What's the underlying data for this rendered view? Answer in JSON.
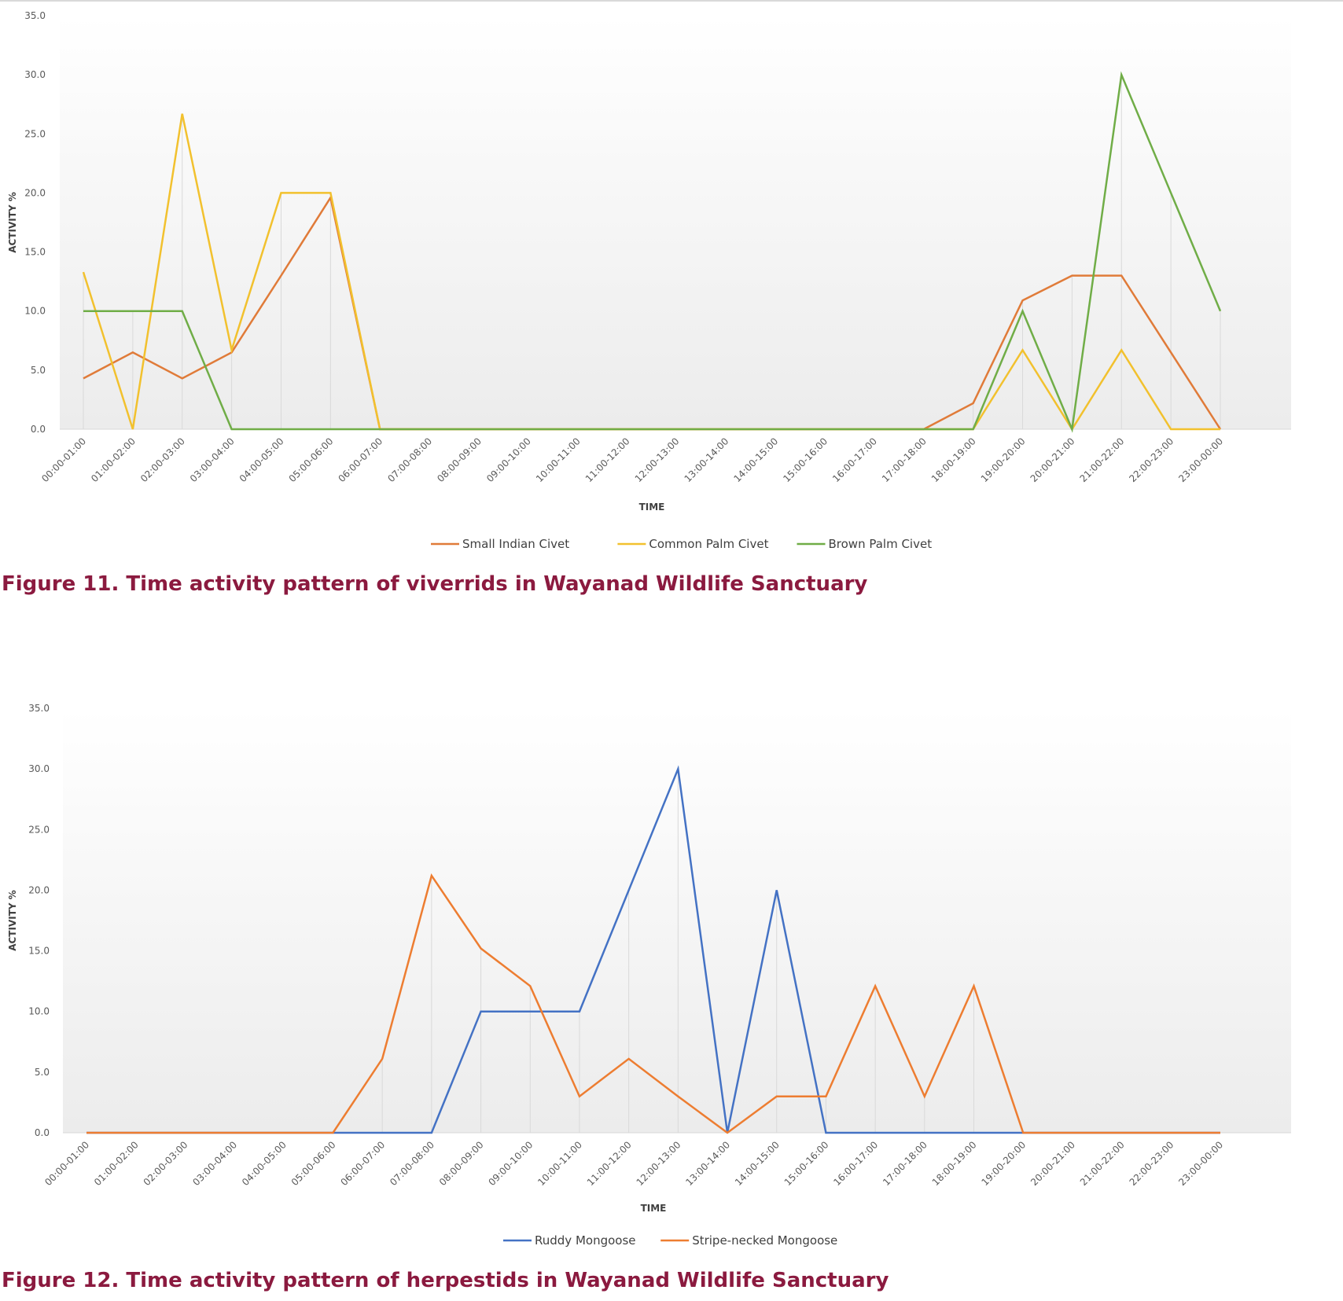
{
  "figures": [
    {
      "caption": "Figure 11. Time activity pattern of viverrids in Wayanad Wildlife Sanctuary"
    },
    {
      "caption": "Figure 12. Time activity pattern of herpestids in Wayanad Wildlife Sanctuary"
    }
  ],
  "chart_data": [
    {
      "type": "line",
      "xlabel": "TIME",
      "ylabel": "ACTIVITY %",
      "ylim": [
        0,
        35
      ],
      "yticks": [
        "0.0",
        "5.0",
        "10.0",
        "15.0",
        "20.0",
        "25.0",
        "30.0",
        "35.0"
      ],
      "grid": "vertical drop lines at each category",
      "legend_position": "bottom",
      "categories": [
        "00:00-01:00",
        "01:00-02:00",
        "02:00-03:00",
        "03:00-04:00",
        "04:00-05:00",
        "05:00-06:00",
        "06:00-07:00",
        "07:00-08:00",
        "08:00-09:00",
        "09:00-10:00",
        "10:00-11:00",
        "11:00-12:00",
        "12:00-13:00",
        "13:00-14:00",
        "14:00-15:00",
        "15:00-16:00",
        "16:00-17:00",
        "17:00-18:00",
        "18:00-19:00",
        "19:00-20:00",
        "20:00-21:00",
        "21:00-22:00",
        "22:00-23:00",
        "23:00-00:00"
      ],
      "series": [
        {
          "name": "Small Indian Civet",
          "color": "#e07b39",
          "values": [
            4.3,
            6.5,
            4.3,
            6.5,
            13.0,
            19.6,
            0,
            0,
            0,
            0,
            0,
            0,
            0,
            0,
            0,
            0,
            0,
            0,
            2.2,
            10.9,
            13.0,
            13.0,
            6.5,
            0
          ]
        },
        {
          "name": "Common Palm Civet",
          "color": "#f2c12e",
          "values": [
            13.3,
            0,
            26.7,
            6.7,
            20.0,
            20.0,
            0,
            0,
            0,
            0,
            0,
            0,
            0,
            0,
            0,
            0,
            0,
            0,
            0,
            6.7,
            0,
            6.7,
            0,
            0
          ]
        },
        {
          "name": "Brown Palm Civet",
          "color": "#70ad47",
          "values": [
            10.0,
            10.0,
            10.0,
            0,
            0,
            0,
            0,
            0,
            0,
            0,
            0,
            0,
            0,
            0,
            0,
            0,
            0,
            0,
            0,
            10.0,
            0,
            30.0,
            20.0,
            10.0
          ]
        }
      ]
    },
    {
      "type": "line",
      "xlabel": "TIME",
      "ylabel": "ACTIVITY %",
      "ylim": [
        0,
        35
      ],
      "yticks": [
        "0.0",
        "5.0",
        "10.0",
        "15.0",
        "20.0",
        "25.0",
        "30.0",
        "35.0"
      ],
      "grid": "vertical drop lines at each category",
      "legend_position": "bottom",
      "categories": [
        "00:00-01:00",
        "01:00-02:00",
        "02:00-03:00",
        "03:00-04:00",
        "04:00-05:00",
        "05:00-06:00",
        "06:00-07:00",
        "07:00-08:00",
        "08:00-09:00",
        "09:00-10:00",
        "10:00-11:00",
        "11:00-12:00",
        "12:00-13:00",
        "13:00-14:00",
        "14:00-15:00",
        "15:00-16:00",
        "16:00-17:00",
        "17:00-18:00",
        "18:00-19:00",
        "19:00-20:00",
        "20:00-21:00",
        "21:00-22:00",
        "22:00-23:00",
        "23:00-00:00"
      ],
      "series": [
        {
          "name": "Ruddy Mongoose",
          "color": "#4472c4",
          "values": [
            0,
            0,
            0,
            0,
            0,
            0,
            0,
            0,
            10.0,
            10.0,
            10.0,
            20.0,
            30.0,
            0,
            20.0,
            0,
            0,
            0,
            0,
            0,
            0,
            0,
            0,
            0
          ]
        },
        {
          "name": "Stripe-necked Mongoose",
          "color": "#ed7d31",
          "values": [
            0,
            0,
            0,
            0,
            0,
            0,
            6.1,
            21.2,
            15.2,
            12.1,
            3.0,
            6.1,
            3.0,
            0,
            3.0,
            3.0,
            12.1,
            3.0,
            12.1,
            0,
            0,
            0,
            0,
            0
          ]
        }
      ]
    }
  ]
}
